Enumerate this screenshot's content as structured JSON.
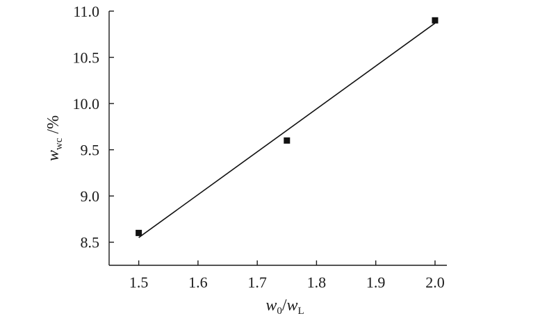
{
  "chart_data": {
    "type": "scatter",
    "x": [
      1.5,
      1.75,
      2.0
    ],
    "y": [
      8.6,
      9.6,
      10.9
    ],
    "xlim": [
      1.45,
      2.02
    ],
    "ylim": [
      8.25,
      11.0
    ],
    "xticks": [
      1.5,
      1.6,
      1.7,
      1.8,
      1.9,
      2.0
    ],
    "xtick_labels": [
      "1.5",
      "1.6",
      "1.7",
      "1.8",
      "1.9",
      "2.0"
    ],
    "yticks": [
      8.5,
      9.0,
      9.5,
      10.0,
      10.5,
      11.0
    ],
    "ytick_labels": [
      "8.5",
      "9.0",
      "9.5",
      "10.0",
      "10.5",
      "11.0"
    ],
    "fit_line": {
      "x": [
        1.5,
        2.0
      ],
      "y": [
        8.55,
        10.87
      ]
    },
    "xlabel": {
      "base": "w",
      "sub": "0",
      "sep": "/",
      "base2": "w",
      "sub2": "L"
    },
    "ylabel": {
      "base": "w",
      "sub": "wc",
      "suffix": " /%"
    },
    "grid": false,
    "marker": "square",
    "colors": {
      "marker": "#111111",
      "line": "#111111",
      "axis": "#1a1a1a"
    }
  }
}
